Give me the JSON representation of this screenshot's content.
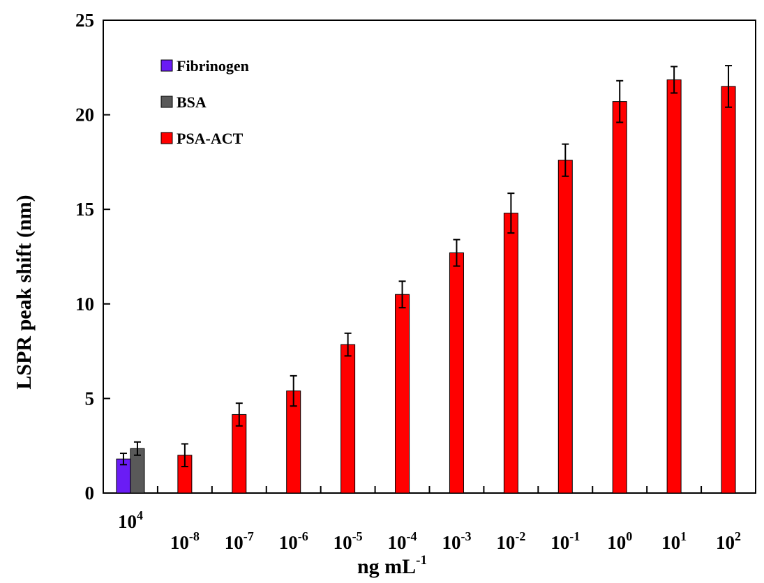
{
  "chart_data": {
    "type": "bar",
    "xlabel": "ng mL",
    "xlabel_sup": "-1",
    "ylabel": "LSPR peak shift (nm)",
    "ylim": [
      0,
      25
    ],
    "yticks": [
      0,
      5,
      10,
      15,
      20,
      25
    ],
    "grid": false,
    "legend_position": "top-left",
    "groups": [
      {
        "label_base": "10",
        "label_exp": "4",
        "bars": [
          {
            "series": "Fibrinogen",
            "value": 1.8,
            "error": 0.3
          },
          {
            "series": "BSA",
            "value": 2.35,
            "error": 0.35
          }
        ]
      },
      {
        "label_base": "10",
        "label_exp": "-8",
        "bars": [
          {
            "series": "PSA-ACT",
            "value": 2.0,
            "error": 0.6
          }
        ]
      },
      {
        "label_base": "10",
        "label_exp": "-7",
        "bars": [
          {
            "series": "PSA-ACT",
            "value": 4.15,
            "error": 0.6
          }
        ]
      },
      {
        "label_base": "10",
        "label_exp": "-6",
        "bars": [
          {
            "series": "PSA-ACT",
            "value": 5.4,
            "error": 0.8
          }
        ]
      },
      {
        "label_base": "10",
        "label_exp": "-5",
        "bars": [
          {
            "series": "PSA-ACT",
            "value": 7.85,
            "error": 0.6
          }
        ]
      },
      {
        "label_base": "10",
        "label_exp": "-4",
        "bars": [
          {
            "series": "PSA-ACT",
            "value": 10.5,
            "error": 0.7
          }
        ]
      },
      {
        "label_base": "10",
        "label_exp": "-3",
        "bars": [
          {
            "series": "PSA-ACT",
            "value": 12.7,
            "error": 0.7
          }
        ]
      },
      {
        "label_base": "10",
        "label_exp": "-2",
        "bars": [
          {
            "series": "PSA-ACT",
            "value": 14.8,
            "error": 1.05
          }
        ]
      },
      {
        "label_base": "10",
        "label_exp": "-1",
        "bars": [
          {
            "series": "PSA-ACT",
            "value": 17.6,
            "error": 0.85
          }
        ]
      },
      {
        "label_base": "10",
        "label_exp": "0",
        "bars": [
          {
            "series": "PSA-ACT",
            "value": 20.7,
            "error": 1.1
          }
        ]
      },
      {
        "label_base": "10",
        "label_exp": "1",
        "bars": [
          {
            "series": "PSA-ACT",
            "value": 21.85,
            "error": 0.7
          }
        ]
      },
      {
        "label_base": "10",
        "label_exp": "2",
        "bars": [
          {
            "series": "PSA-ACT",
            "value": 21.5,
            "error": 1.1
          }
        ]
      }
    ],
    "series": [
      {
        "name": "Fibrinogen",
        "color": "#6a1cf5"
      },
      {
        "name": "BSA",
        "color": "#595959"
      },
      {
        "name": "PSA-ACT",
        "color": "#ff0000"
      }
    ]
  }
}
